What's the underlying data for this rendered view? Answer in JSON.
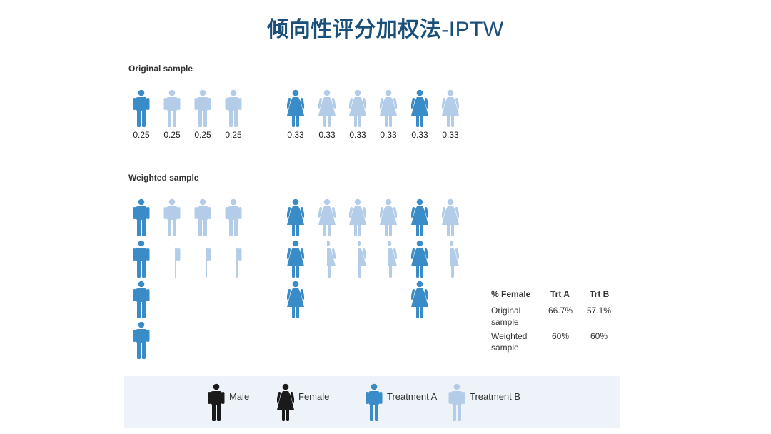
{
  "title": {
    "zh": "倾向性评分加权法",
    "en": "-IPTW"
  },
  "colors": {
    "treatment_a": "#3a8cc8",
    "treatment_b": "#b3cde8",
    "legend_black": "#1a1a1a",
    "legend_bg": "#eef3f9"
  },
  "original_sample": {
    "label": "Original sample",
    "figures": [
      {
        "gender": "male",
        "treatment": "A",
        "weight": "0.25"
      },
      {
        "gender": "male",
        "treatment": "B",
        "weight": "0.25"
      },
      {
        "gender": "male",
        "treatment": "B",
        "weight": "0.25"
      },
      {
        "gender": "male",
        "treatment": "B",
        "weight": "0.25"
      },
      {
        "gender": "female",
        "treatment": "A",
        "weight": "0.33"
      },
      {
        "gender": "female",
        "treatment": "B",
        "weight": "0.33"
      },
      {
        "gender": "female",
        "treatment": "B",
        "weight": "0.33"
      },
      {
        "gender": "female",
        "treatment": "B",
        "weight": "0.33"
      },
      {
        "gender": "female",
        "treatment": "A",
        "weight": "0.33"
      },
      {
        "gender": "female",
        "treatment": "B",
        "weight": "0.33"
      }
    ]
  },
  "weighted_sample": {
    "label": "Weighted sample",
    "columns": [
      {
        "gender": "male",
        "treatment": "A",
        "full": 4,
        "partial": 0
      },
      {
        "gender": "male",
        "treatment": "B",
        "full": 1,
        "partial": 0.33
      },
      {
        "gender": "male",
        "treatment": "B",
        "full": 1,
        "partial": 0.33
      },
      {
        "gender": "male",
        "treatment": "B",
        "full": 1,
        "partial": 0.33
      },
      {
        "gender": "female",
        "treatment": "A",
        "full": 3,
        "partial": 0
      },
      {
        "gender": "female",
        "treatment": "B",
        "full": 1,
        "partial": 0.5
      },
      {
        "gender": "female",
        "treatment": "B",
        "full": 1,
        "partial": 0.5
      },
      {
        "gender": "female",
        "treatment": "B",
        "full": 1,
        "partial": 0.5
      },
      {
        "gender": "female",
        "treatment": "A",
        "full": 3,
        "partial": 0
      },
      {
        "gender": "female",
        "treatment": "B",
        "full": 1,
        "partial": 0.5
      }
    ]
  },
  "percent_table": {
    "headers": [
      "% Female",
      "Trt A",
      "Trt B"
    ],
    "rows": [
      {
        "label_line1": "Original",
        "label_line2": "sample",
        "trt_a": "66.7%",
        "trt_b": "57.1%"
      },
      {
        "label_line1": "Weighted",
        "label_line2": "sample",
        "trt_a": "60%",
        "trt_b": "60%"
      }
    ]
  },
  "legend": {
    "items": [
      {
        "label": "Male",
        "icon": "male-figure-icon",
        "color_key": "legend_black",
        "gender": "male"
      },
      {
        "label": "Female",
        "icon": "female-figure-icon",
        "color_key": "legend_black",
        "gender": "female"
      },
      {
        "label": "Treatment A",
        "icon": "male-figure-icon",
        "color_key": "treatment_a",
        "gender": "male"
      },
      {
        "label": "Treatment B",
        "icon": "male-figure-icon",
        "color_key": "treatment_b",
        "gender": "male"
      }
    ]
  }
}
